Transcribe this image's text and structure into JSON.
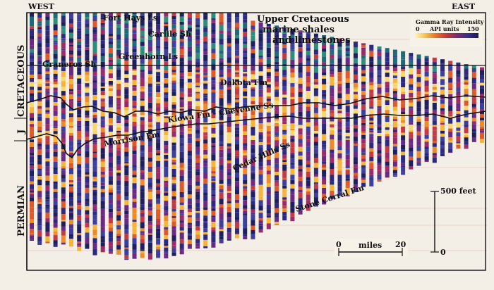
{
  "directions": {
    "west": "WEST",
    "east": "EAST"
  },
  "periods": {
    "cretaceous": "CRETACEOUS",
    "jurassic": "J",
    "permian": "PERMIAN"
  },
  "formations": {
    "fort_hays": "Fort Hays Ls",
    "carlile": "Carlile Sh",
    "greenhorn": "Greenhorn Ls",
    "graneros": "Graneros Sh",
    "dakota": "Dakota Fm",
    "kiowa_cheyenne": "Kiowa Fm - Cheyenne Ss",
    "morrison": "Morrison Fm",
    "cedar_hills": "Cedar Hills Ss",
    "stone_corral": "Stone Corral Fm"
  },
  "annotation": {
    "line1": "Upper Cretaceous",
    "line2": "marine shales",
    "line3": "and limestones"
  },
  "legend": {
    "title": "Gamma Ray Intensity",
    "min": "0",
    "unit": "API units",
    "max": "150",
    "colors": [
      "#fff4c0",
      "#f5c04a",
      "#e8702a",
      "#c03a3a",
      "#7a2a6e",
      "#3a2e8a",
      "#1a1a55"
    ]
  },
  "vertical_scale": {
    "top": "500 feet",
    "bottom": "0"
  },
  "horizontal_scale": {
    "start": "0",
    "label": "miles",
    "end": "20"
  },
  "palette": [
    "#1d1f5e",
    "#2c2a7e",
    "#3c3f9c",
    "#6a2a84",
    "#9a2a6a",
    "#c23a44",
    "#de5a2a",
    "#ee8a2a",
    "#f6b43a",
    "#f8d870",
    "#1f6a78",
    "#2e8c7c"
  ]
}
